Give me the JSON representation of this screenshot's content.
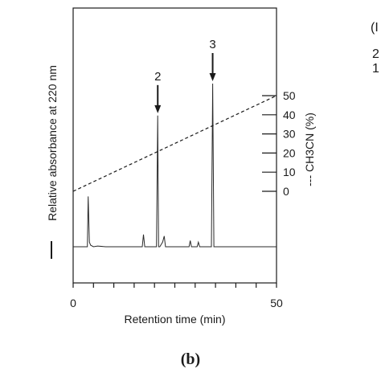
{
  "chart_data": {
    "type": "line",
    "xlabel": "Retention time (min)",
    "xlim": [
      0,
      50
    ],
    "x_ticks": [
      0,
      5,
      10,
      15,
      20,
      25,
      30,
      35,
      40,
      45,
      50
    ],
    "x_tick_labels": [
      "0",
      "50"
    ],
    "ylabel_left": "Relative absorbance at 220 nm",
    "ylabel_left_legend": "—",
    "ylabel_right": "--- CH3CN (%)",
    "y_right_ticks": [
      0,
      10,
      20,
      30,
      40,
      50
    ],
    "y_right_tick_labels": [
      "0",
      "10",
      "20",
      "30",
      "40",
      "50"
    ],
    "series": [
      {
        "style": "solid",
        "baseline": 0.05,
        "x": [
          0,
          3.5,
          3.7,
          4.0,
          4.3,
          5.0,
          6.0,
          8.0,
          17.0,
          17.3,
          17.6,
          18.0,
          20.5,
          20.8,
          21.0,
          21.3,
          22.0,
          22.4,
          22.7,
          28.5,
          28.8,
          29.1,
          30.5,
          30.8,
          31.1,
          34.0,
          34.3,
          34.6,
          35.0,
          50
        ],
        "y": [
          0.05,
          0.05,
          0.38,
          0.08,
          0.06,
          0.05,
          0.055,
          0.05,
          0.05,
          0.13,
          0.05,
          0.05,
          0.05,
          0.91,
          0.05,
          0.05,
          0.08,
          0.12,
          0.05,
          0.05,
          0.09,
          0.05,
          0.05,
          0.08,
          0.05,
          0.05,
          1.12,
          0.05,
          0.05,
          0.05
        ]
      },
      {
        "style": "dashed",
        "axis": "right",
        "x": [
          0,
          50
        ],
        "y": [
          0,
          50
        ]
      }
    ],
    "annotations": [
      {
        "label": "2",
        "x": 20.8
      },
      {
        "label": "3",
        "x": 34.3
      }
    ],
    "panel_label": "(b)",
    "side_fragments": [
      "(I",
      "2",
      "1"
    ]
  }
}
